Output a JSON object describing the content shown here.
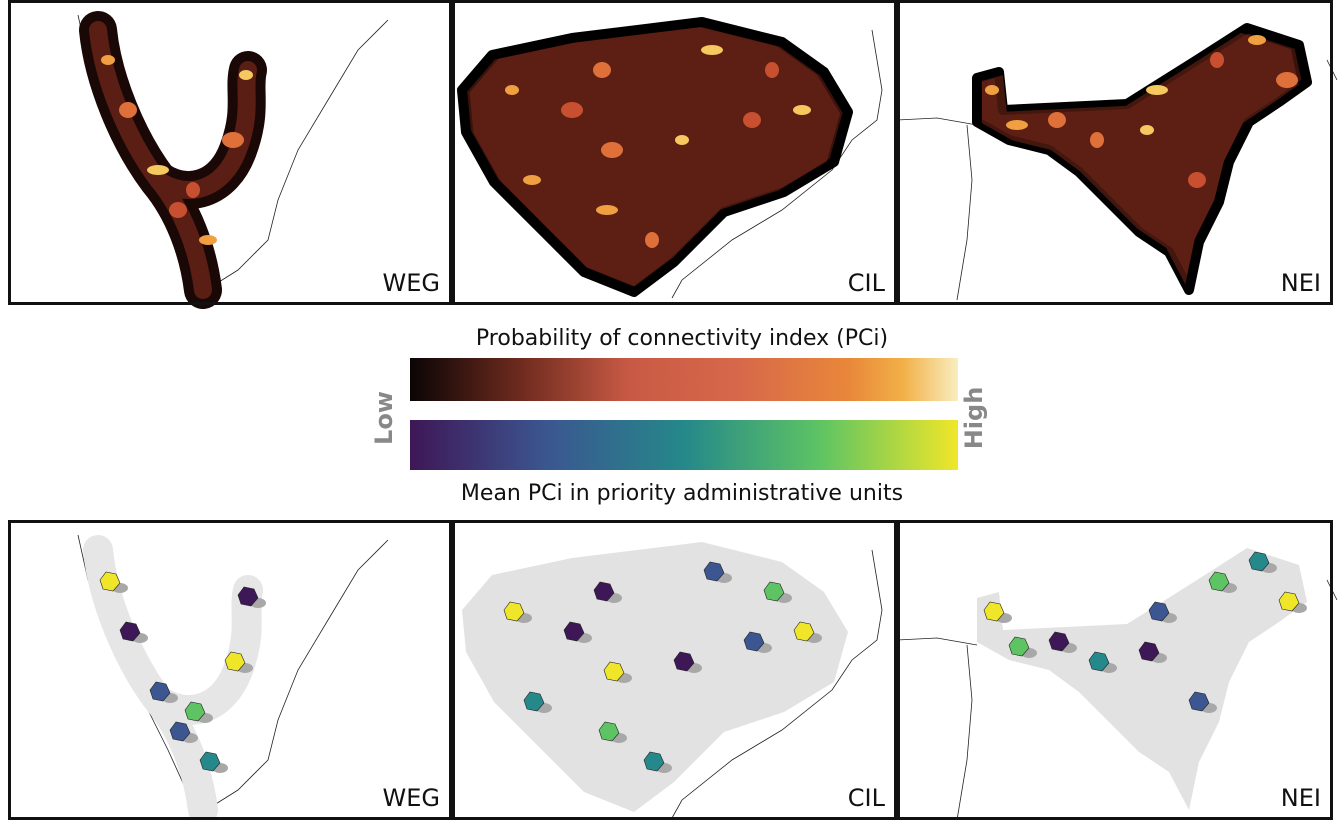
{
  "top_panels": [
    {
      "label": "WEG"
    },
    {
      "label": "CIL"
    },
    {
      "label": "NEI"
    }
  ],
  "legend": {
    "title_top": "Probability of connectivity index (PCi)",
    "title_bottom": "Mean PCi in priority administrative units",
    "low": "Low",
    "high": "High"
  },
  "bottom_panels": [
    {
      "label": "WEG"
    },
    {
      "label": "CIL"
    },
    {
      "label": "NEI"
    }
  ]
}
